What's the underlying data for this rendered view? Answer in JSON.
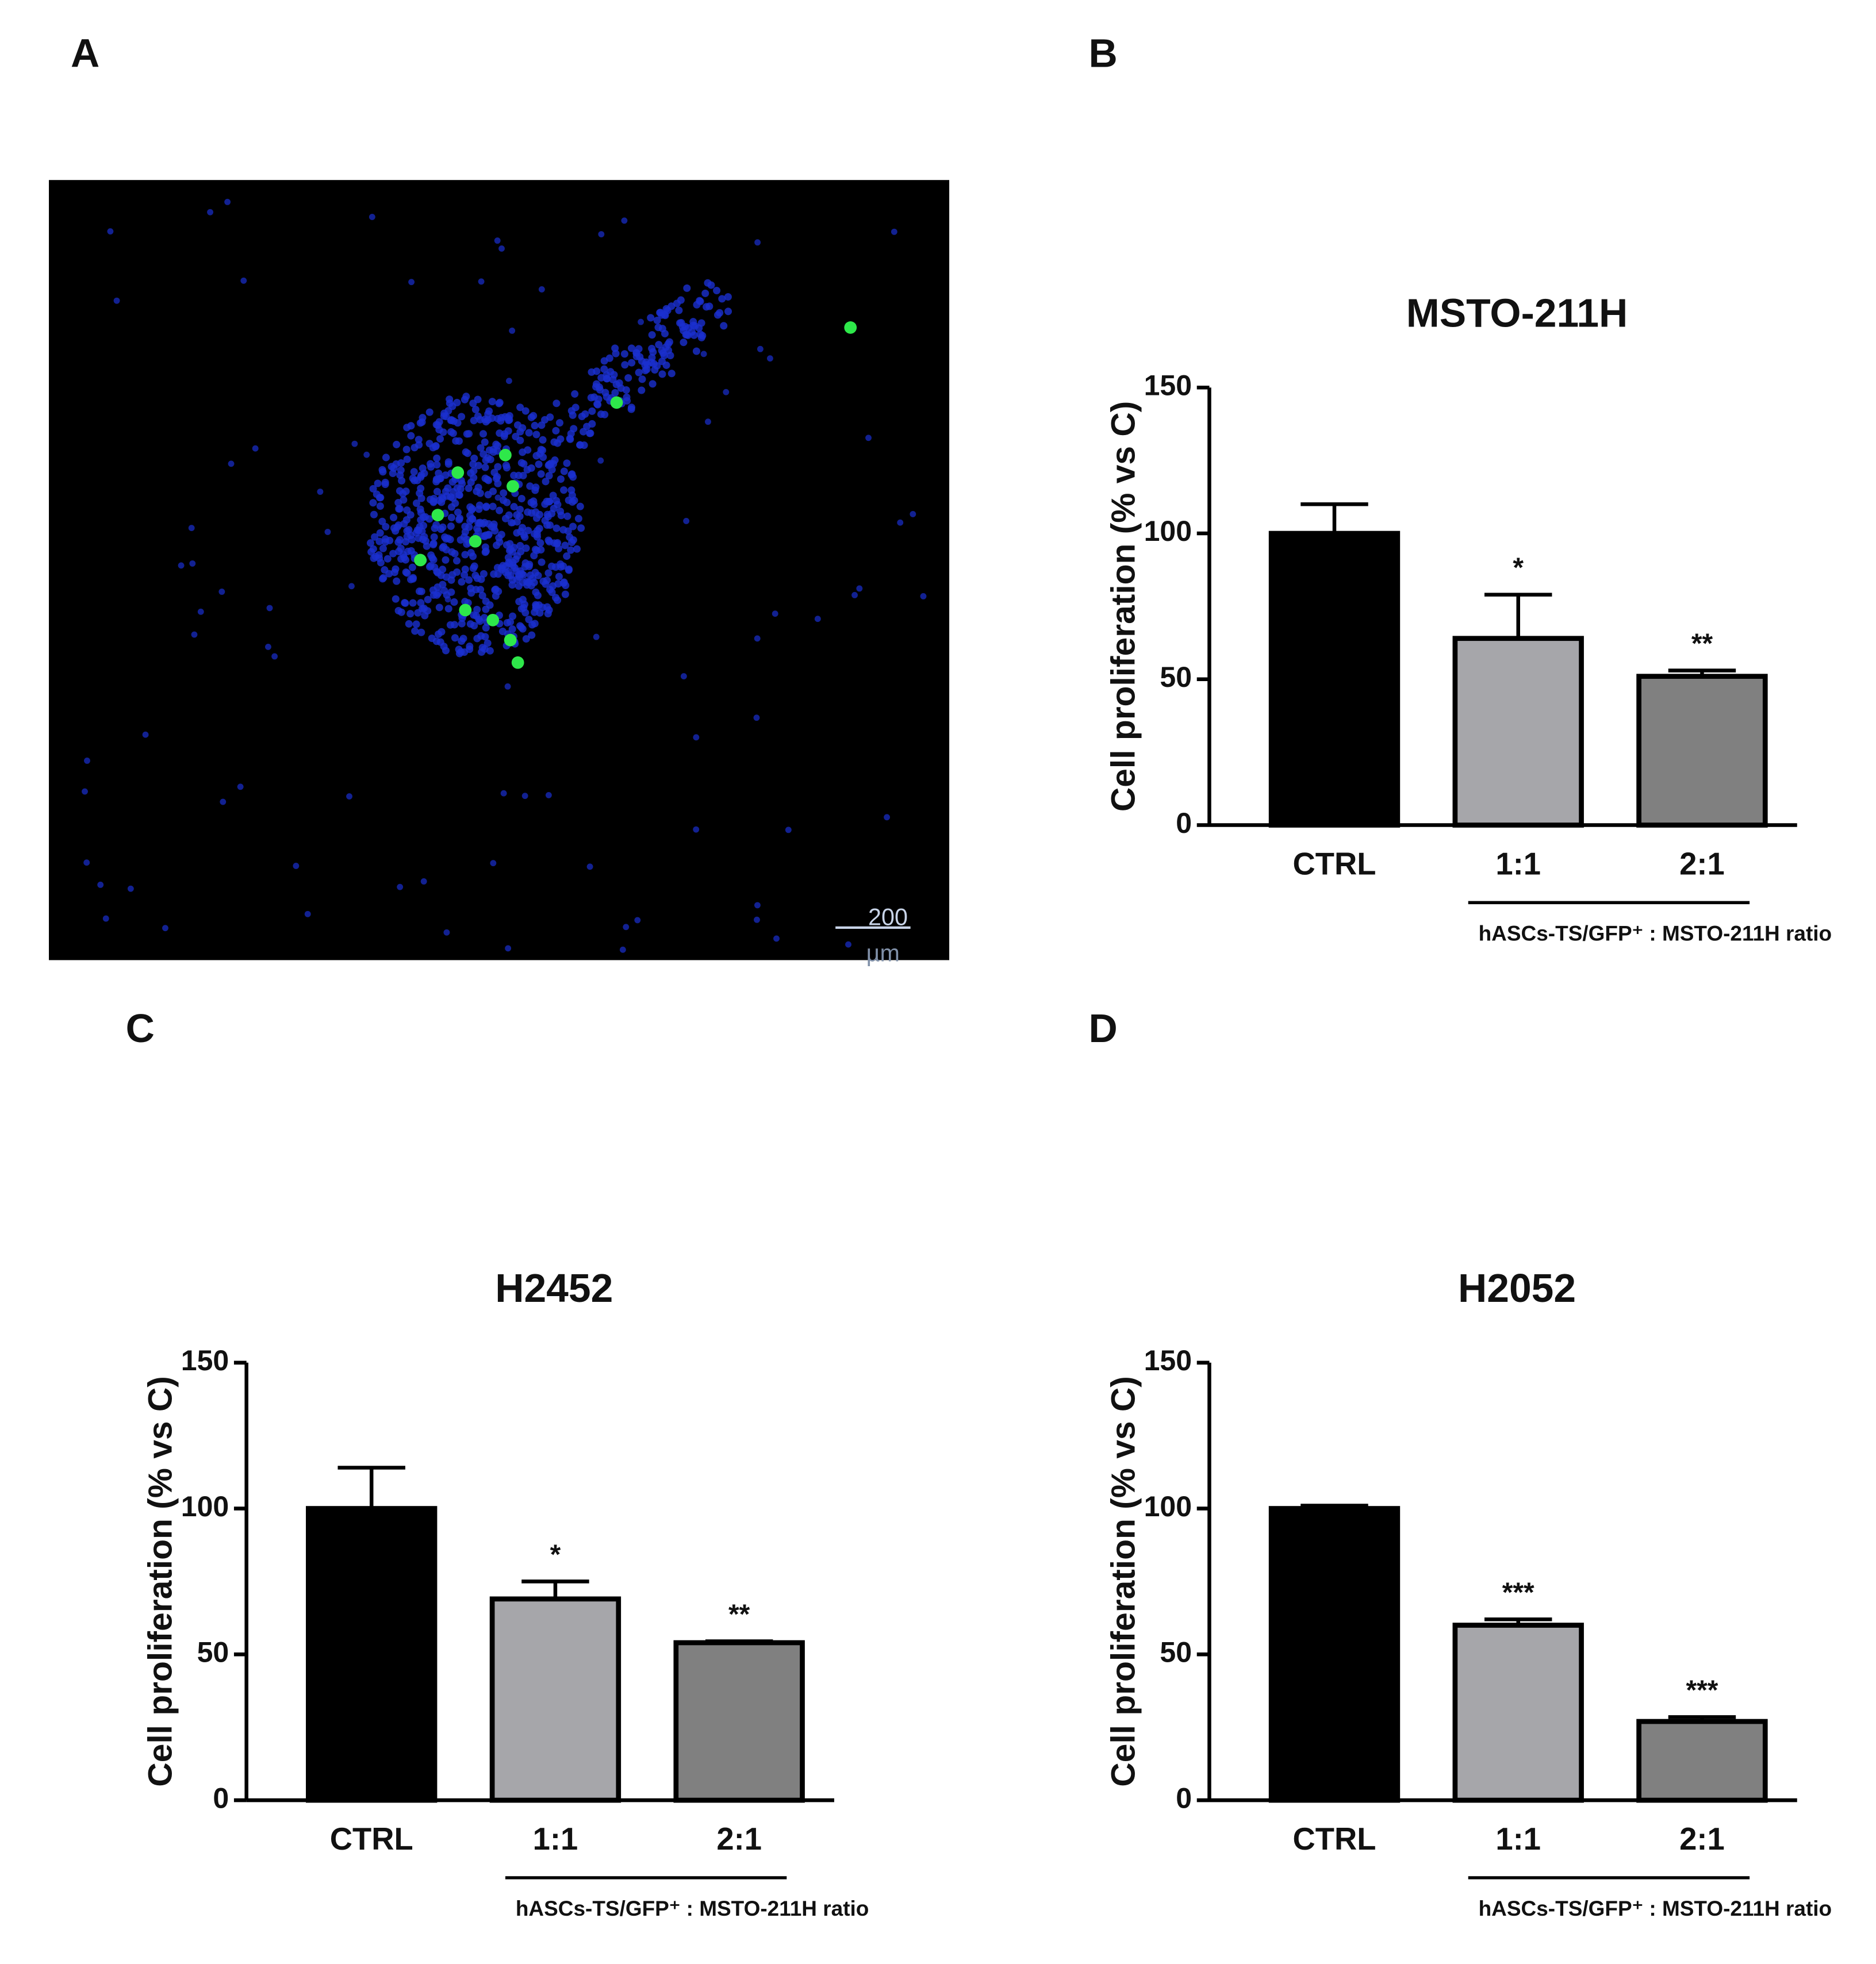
{
  "image": {
    "label": "A",
    "scale_bar_value": "200",
    "scale_bar_unit": "µm"
  },
  "chart_data": [
    {
      "type": "bar",
      "label": "B",
      "title": "MSTO-211H",
      "ylabel": "Cell proliferation (% vs C)",
      "xlabel": "hASCs-TS/GFP⁺ : MSTO-211H ratio",
      "categories": [
        "CTRL",
        "1:1",
        "2:1"
      ],
      "values": [
        100,
        64,
        51
      ],
      "errors": [
        10,
        15,
        2
      ],
      "annotations": [
        null,
        "*",
        "**"
      ],
      "colors": [
        "#000000",
        "#a6a6aa",
        "#808080"
      ],
      "ylim": [
        0,
        150
      ],
      "yticks": [
        0,
        50,
        100,
        150
      ]
    },
    {
      "type": "bar",
      "label": "C",
      "title": "H2452",
      "ylabel": "Cell proliferation (% vs C)",
      "xlabel": "hASCs-TS/GFP⁺ : MSTO-211H ratio",
      "categories": [
        "CTRL",
        "1:1",
        "2:1"
      ],
      "values": [
        100,
        69,
        54
      ],
      "errors": [
        14,
        6,
        0.5
      ],
      "annotations": [
        null,
        "*",
        "**"
      ],
      "colors": [
        "#000000",
        "#a6a6aa",
        "#808080"
      ],
      "ylim": [
        0,
        150
      ],
      "yticks": [
        0,
        50,
        100,
        150
      ]
    },
    {
      "type": "bar",
      "label": "D",
      "title": "H2052",
      "ylabel": "Cell proliferation (% vs C)",
      "xlabel": "hASCs-TS/GFP⁺ : MSTO-211H ratio",
      "categories": [
        "CTRL",
        "1:1",
        "2:1"
      ],
      "values": [
        100,
        60,
        27
      ],
      "errors": [
        1,
        2,
        1.5
      ],
      "annotations": [
        null,
        "***",
        "***"
      ],
      "colors": [
        "#000000",
        "#a6a6aa",
        "#808080"
      ],
      "ylim": [
        0,
        150
      ],
      "yticks": [
        0,
        50,
        100,
        150
      ]
    }
  ]
}
